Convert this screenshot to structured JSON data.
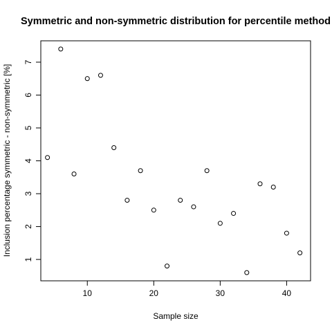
{
  "chart_data": {
    "type": "scatter",
    "title": "Symmetric and non-symmetric distribution for percentile method",
    "xlabel": "Sample size",
    "ylabel": "Inclusion percentage symmetric - non-symmetric [%]",
    "xlim": [
      3,
      43.6
    ],
    "ylim": [
      0.35,
      7.65
    ],
    "xticks": [
      10,
      20,
      30,
      40
    ],
    "yticks": [
      1,
      2,
      3,
      4,
      5,
      6,
      7
    ],
    "grid": false,
    "points": [
      {
        "x": 4,
        "y": 4.1
      },
      {
        "x": 6,
        "y": 7.4
      },
      {
        "x": 8,
        "y": 3.6
      },
      {
        "x": 10,
        "y": 6.5
      },
      {
        "x": 12,
        "y": 6.6
      },
      {
        "x": 14,
        "y": 4.4
      },
      {
        "x": 16,
        "y": 2.8
      },
      {
        "x": 18,
        "y": 3.7
      },
      {
        "x": 20,
        "y": 2.5
      },
      {
        "x": 22,
        "y": 0.8
      },
      {
        "x": 24,
        "y": 2.8
      },
      {
        "x": 26,
        "y": 2.6
      },
      {
        "x": 28,
        "y": 3.7
      },
      {
        "x": 30,
        "y": 2.1
      },
      {
        "x": 32,
        "y": 2.4
      },
      {
        "x": 34,
        "y": 0.6
      },
      {
        "x": 36,
        "y": 3.3
      },
      {
        "x": 38,
        "y": 3.2
      },
      {
        "x": 40,
        "y": 1.8
      },
      {
        "x": 42,
        "y": 1.2
      }
    ]
  }
}
